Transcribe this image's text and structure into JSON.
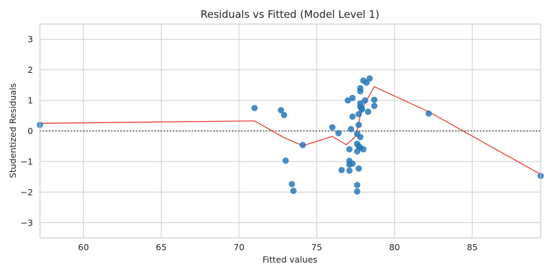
{
  "chart_data": {
    "type": "scatter",
    "title": "Residuals vs Fitted (Model Level 1)",
    "xlabel": "Fitted values",
    "ylabel": "Studentized Residuals",
    "xlim": [
      57.2,
      89.4
    ],
    "ylim": [
      -3.5,
      3.5
    ],
    "xticks": [
      60,
      65,
      70,
      75,
      80,
      85
    ],
    "yticks": [
      -3,
      -2,
      -1,
      0,
      1,
      2,
      3
    ],
    "grid": true,
    "reference_line_y": 0,
    "point_color": "#2878b8",
    "smoother_color": "#e8261f",
    "points": [
      {
        "x": 57.2,
        "y": 0.2
      },
      {
        "x": 71.0,
        "y": 0.75
      },
      {
        "x": 72.7,
        "y": 0.68
      },
      {
        "x": 72.9,
        "y": 0.52
      },
      {
        "x": 73.0,
        "y": -0.97
      },
      {
        "x": 73.4,
        "y": -1.74
      },
      {
        "x": 73.5,
        "y": -1.96
      },
      {
        "x": 74.1,
        "y": -0.46
      },
      {
        "x": 76.0,
        "y": 0.12
      },
      {
        "x": 76.4,
        "y": -0.07
      },
      {
        "x": 76.6,
        "y": -1.28
      },
      {
        "x": 77.0,
        "y": 1.0
      },
      {
        "x": 77.1,
        "y": -0.6
      },
      {
        "x": 77.1,
        "y": -0.98
      },
      {
        "x": 77.1,
        "y": -1.1
      },
      {
        "x": 77.1,
        "y": -1.3
      },
      {
        "x": 77.2,
        "y": 0.06
      },
      {
        "x": 77.3,
        "y": 1.08
      },
      {
        "x": 77.3,
        "y": 0.47
      },
      {
        "x": 77.3,
        "y": -1.07
      },
      {
        "x": 77.6,
        "y": -0.09
      },
      {
        "x": 77.6,
        "y": -0.42
      },
      {
        "x": 77.6,
        "y": -0.67
      },
      {
        "x": 77.6,
        "y": -1.77
      },
      {
        "x": 77.6,
        "y": -1.98
      },
      {
        "x": 77.7,
        "y": 0.2
      },
      {
        "x": 77.7,
        "y": 0.55
      },
      {
        "x": 77.7,
        "y": -0.5
      },
      {
        "x": 77.7,
        "y": -1.23
      },
      {
        "x": 77.8,
        "y": 1.4
      },
      {
        "x": 77.8,
        "y": 1.3
      },
      {
        "x": 77.8,
        "y": 0.9
      },
      {
        "x": 77.8,
        "y": 0.8
      },
      {
        "x": 77.8,
        "y": -0.2
      },
      {
        "x": 77.8,
        "y": -0.55
      },
      {
        "x": 77.9,
        "y": 0.75
      },
      {
        "x": 77.9,
        "y": 0.7
      },
      {
        "x": 78.0,
        "y": 1.65
      },
      {
        "x": 78.0,
        "y": -0.6
      },
      {
        "x": 78.1,
        "y": 1.0
      },
      {
        "x": 78.2,
        "y": 1.58
      },
      {
        "x": 78.3,
        "y": 0.63
      },
      {
        "x": 78.4,
        "y": 1.72
      },
      {
        "x": 78.7,
        "y": 1.02
      },
      {
        "x": 78.7,
        "y": 0.82
      },
      {
        "x": 82.2,
        "y": 0.57
      },
      {
        "x": 89.4,
        "y": -1.47
      }
    ],
    "smoother": [
      {
        "x": 57.2,
        "y": 0.25
      },
      {
        "x": 71.0,
        "y": 0.33
      },
      {
        "x": 72.9,
        "y": -0.22
      },
      {
        "x": 74.1,
        "y": -0.48
      },
      {
        "x": 76.0,
        "y": -0.18
      },
      {
        "x": 76.9,
        "y": -0.45
      },
      {
        "x": 77.5,
        "y": -0.18
      },
      {
        "x": 77.9,
        "y": 0.72
      },
      {
        "x": 78.7,
        "y": 1.45
      },
      {
        "x": 82.2,
        "y": 0.63
      },
      {
        "x": 89.4,
        "y": -1.42
      }
    ]
  }
}
